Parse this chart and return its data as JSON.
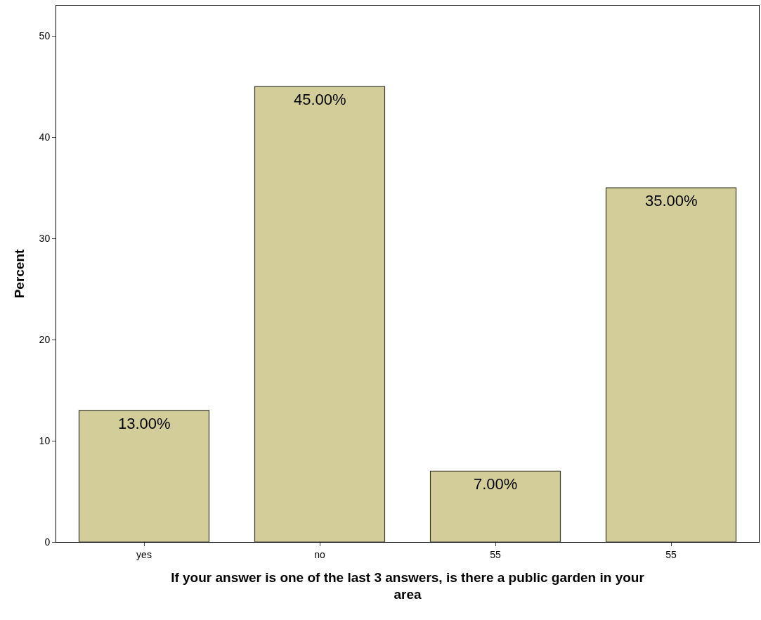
{
  "chart_data": {
    "type": "bar",
    "xlabel": "If your answer is one of the last 3 answers, is there a public garden in your area",
    "ylabel": "Percent",
    "categories": [
      "yes",
      "no",
      "55",
      "55"
    ],
    "values": [
      13,
      45,
      7,
      35
    ],
    "value_labels": [
      "13.00%",
      "45.00%",
      "7.00%",
      "35.00%"
    ],
    "color": "#d3ce99",
    "ylim": [
      0,
      53
    ],
    "yticks": [
      0,
      10,
      20,
      30,
      40,
      50
    ],
    "legend": false
  }
}
